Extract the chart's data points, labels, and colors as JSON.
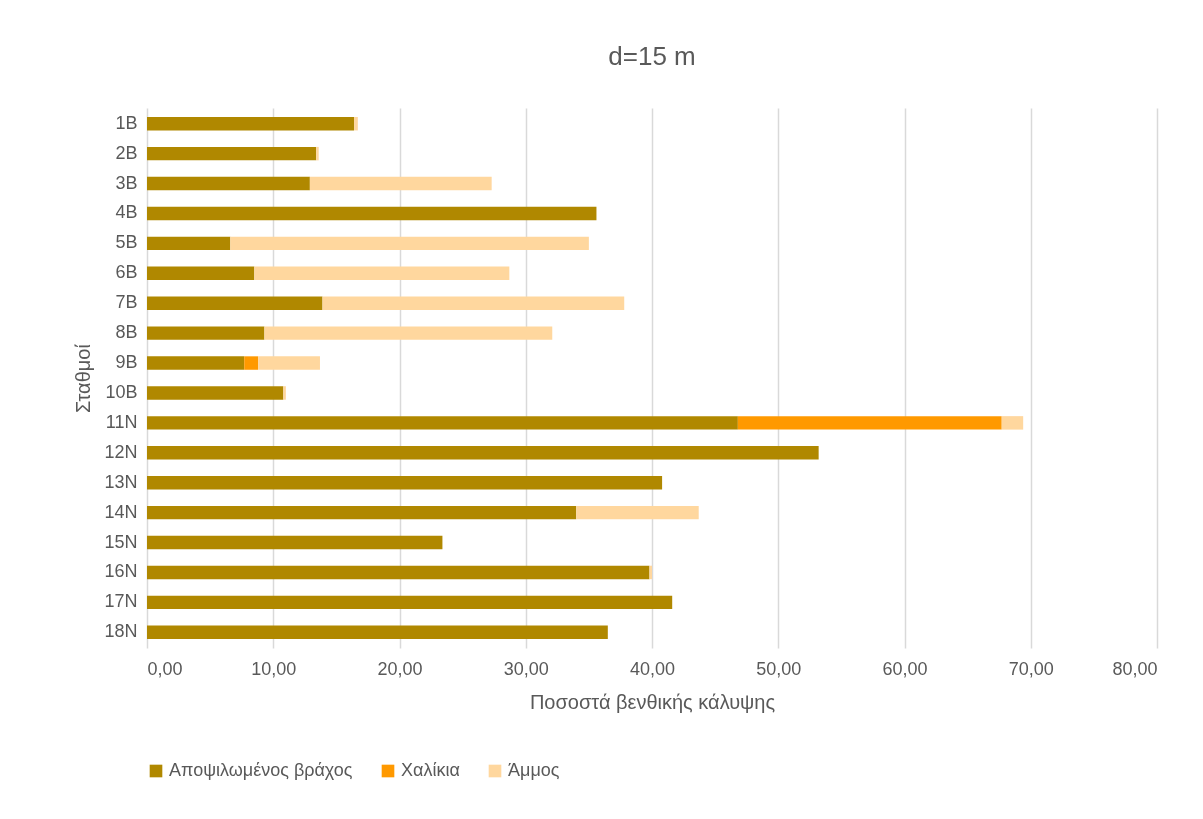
{
  "chart_data": {
    "type": "bar",
    "orientation": "horizontal",
    "stacked": true,
    "title": "d=15 m",
    "xlabel": "Ποσοστά βενθικής κάλυψης",
    "ylabel": "Σταθμοί",
    "categories": [
      "1B",
      "2B",
      "3B",
      "4B",
      "5B",
      "6B",
      "7B",
      "8B",
      "9B",
      "10B",
      "11N",
      "12N",
      "13N",
      "14N",
      "15N",
      "16N",
      "17N",
      "18N"
    ],
    "series": [
      {
        "name": "Αποψιλωμένος βράχος",
        "color": "#b08800",
        "values": [
          16.4,
          13.4,
          12.9,
          35.6,
          6.6,
          8.5,
          13.9,
          9.3,
          7.7,
          10.8,
          46.8,
          53.2,
          40.8,
          34.0,
          23.4,
          39.8,
          41.6,
          36.5
        ]
      },
      {
        "name": "Χαλίκια",
        "color": "#ff9900",
        "values": [
          null,
          null,
          null,
          null,
          null,
          null,
          null,
          null,
          1.1,
          null,
          20.9,
          null,
          null,
          null,
          null,
          null,
          null,
          null
        ]
      },
      {
        "name": "Άμμος",
        "color": "#ffd79e",
        "values": [
          0.3,
          0.2,
          14.4,
          null,
          28.4,
          20.2,
          23.9,
          22.8,
          4.9,
          0.2,
          1.7,
          null,
          null,
          9.7,
          null,
          0.2,
          null,
          null
        ]
      }
    ],
    "xlim": [
      0,
      80
    ],
    "xticks": [
      {
        "value": 0,
        "label": "0,00"
      },
      {
        "value": 10,
        "label": "10,00"
      },
      {
        "value": 20,
        "label": "20,00"
      },
      {
        "value": 30,
        "label": "30,00"
      },
      {
        "value": 40,
        "label": "40,00"
      },
      {
        "value": 50,
        "label": "50,00"
      },
      {
        "value": 60,
        "label": "60,00"
      },
      {
        "value": 70,
        "label": "70,00"
      },
      {
        "value": 80,
        "label": "80,00"
      }
    ],
    "grid": "x",
    "legend": "bottom"
  }
}
